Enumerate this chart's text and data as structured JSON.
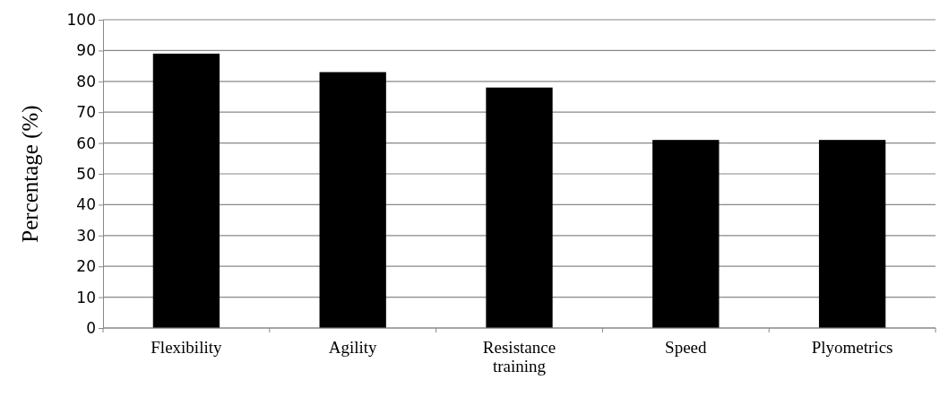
{
  "chart_data": {
    "type": "bar",
    "ylabel": "Percentage (%)",
    "categories": [
      "Flexibility",
      "Agility",
      "Resistance training",
      "Speed",
      "Plyometrics"
    ],
    "values": [
      89,
      83,
      78,
      61,
      61
    ],
    "color": "#000000",
    "ylim": [
      0,
      100
    ],
    "yticks": [
      0,
      10,
      20,
      30,
      40,
      50,
      60,
      70,
      80,
      90,
      100
    ],
    "grid": "y"
  }
}
